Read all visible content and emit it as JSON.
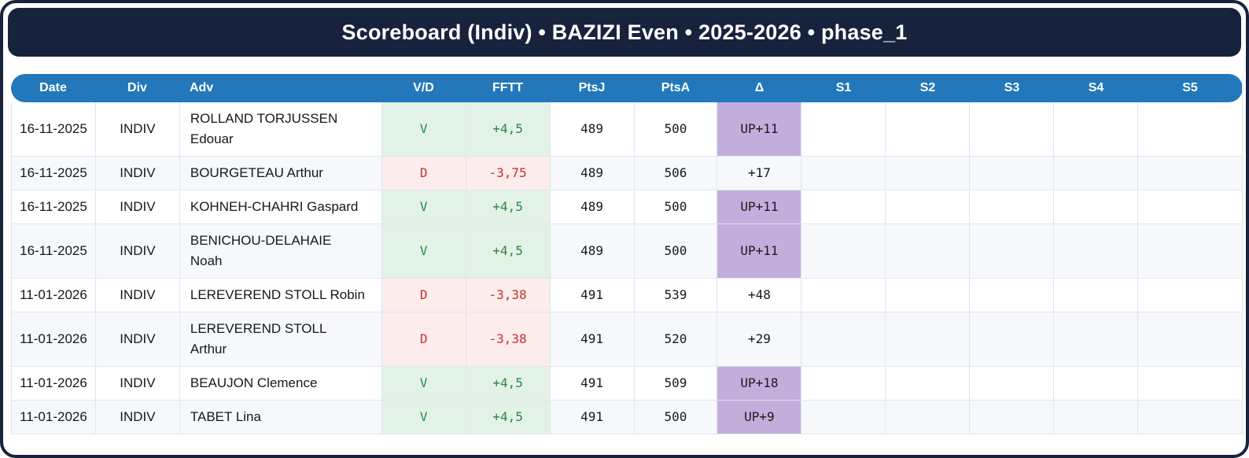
{
  "title": "Scoreboard (Indiv) • BAZIZI Even • 2025-2026 • phase_1",
  "colors": {
    "frame_navy": "#17233d",
    "header_blue": "#2278ba",
    "win_bg": "#e3f2e7",
    "win_text": "#2e8540",
    "loss_bg": "#fdecec",
    "loss_text": "#c53030",
    "promotion_bg": "#c2aedd",
    "stripe_bg": "#f6f8fc"
  },
  "table": {
    "columns": [
      "Date",
      "Div",
      "Adv",
      "V/D",
      "FFTT",
      "PtsJ",
      "PtsA",
      "Δ",
      "S1",
      "S2",
      "S3",
      "S4",
      "S5"
    ],
    "column_keys": [
      "date",
      "div",
      "adv",
      "vd",
      "fftt",
      "ptsj",
      "ptsa",
      "delta",
      "s1",
      "s2",
      "s3",
      "s4",
      "s5"
    ],
    "rows": [
      {
        "date": "16-11-2025",
        "div": "INDIV",
        "adv": "ROLLAND TORJUSSEN\nEdouar",
        "vd": "V",
        "fftt": "+4,5",
        "ptsj": "489",
        "ptsa": "500",
        "delta": "UP+11",
        "result": "win",
        "promoted": true,
        "sets": [
          "",
          "",
          "",
          "",
          ""
        ]
      },
      {
        "date": "16-11-2025",
        "div": "INDIV",
        "adv": "BOURGETEAU Arthur",
        "vd": "D",
        "fftt": "-3,75",
        "ptsj": "489",
        "ptsa": "506",
        "delta": "+17",
        "result": "loss",
        "promoted": false,
        "sets": [
          "",
          "",
          "",
          "",
          ""
        ]
      },
      {
        "date": "16-11-2025",
        "div": "INDIV",
        "adv": "KOHNEH-CHAHRI Gaspard",
        "vd": "V",
        "fftt": "+4,5",
        "ptsj": "489",
        "ptsa": "500",
        "delta": "UP+11",
        "result": "win",
        "promoted": true,
        "sets": [
          "",
          "",
          "",
          "",
          ""
        ]
      },
      {
        "date": "16-11-2025",
        "div": "INDIV",
        "adv": "BENICHOU-DELAHAIE\nNoah",
        "vd": "V",
        "fftt": "+4,5",
        "ptsj": "489",
        "ptsa": "500",
        "delta": "UP+11",
        "result": "win",
        "promoted": true,
        "sets": [
          "",
          "",
          "",
          "",
          ""
        ]
      },
      {
        "date": "11-01-2026",
        "div": "INDIV",
        "adv": "LEREVEREND STOLL Robin",
        "vd": "D",
        "fftt": "-3,38",
        "ptsj": "491",
        "ptsa": "539",
        "delta": "+48",
        "result": "loss",
        "promoted": false,
        "sets": [
          "",
          "",
          "",
          "",
          ""
        ]
      },
      {
        "date": "11-01-2026",
        "div": "INDIV",
        "adv": "LEREVEREND STOLL\nArthur",
        "vd": "D",
        "fftt": "-3,38",
        "ptsj": "491",
        "ptsa": "520",
        "delta": "+29",
        "result": "loss",
        "promoted": false,
        "sets": [
          "",
          "",
          "",
          "",
          ""
        ]
      },
      {
        "date": "11-01-2026",
        "div": "INDIV",
        "adv": "BEAUJON Clemence",
        "vd": "V",
        "fftt": "+4,5",
        "ptsj": "491",
        "ptsa": "509",
        "delta": "UP+18",
        "result": "win",
        "promoted": true,
        "sets": [
          "",
          "",
          "",
          "",
          ""
        ]
      },
      {
        "date": "11-01-2026",
        "div": "INDIV",
        "adv": "TABET Lina",
        "vd": "V",
        "fftt": "+4,5",
        "ptsj": "491",
        "ptsa": "500",
        "delta": "UP+9",
        "result": "win",
        "promoted": true,
        "sets": [
          "",
          "",
          "",
          "",
          ""
        ]
      }
    ]
  }
}
